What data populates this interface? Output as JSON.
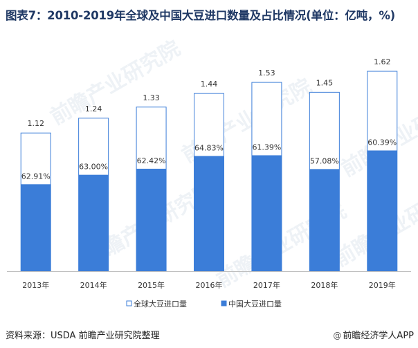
{
  "title": "图表7：2010-2019年全球及中国大豆进口数量及占比情况(单位：亿吨，%)",
  "source": "资料来源：USDA 前瞻产业研究院整理",
  "brand": "前瞻经济学人APP",
  "watermark": "前瞻产业研究院",
  "chart_data": {
    "type": "bar",
    "categories": [
      "2013年",
      "2014年",
      "2015年",
      "2016年",
      "2017年",
      "2018年",
      "2019年"
    ],
    "series": [
      {
        "name": "全球大豆进口量",
        "values": [
          1.12,
          1.24,
          1.33,
          1.44,
          1.53,
          1.45,
          1.62
        ],
        "value_labels": [
          "1.12",
          "1.24",
          "1.33",
          "1.44",
          "1.53",
          "1.45",
          "1.62"
        ],
        "color": "#ffffff",
        "stroke": "#3b7dd8"
      },
      {
        "name": "中国大豆进口量",
        "share_percent": [
          62.91,
          63.0,
          62.42,
          64.83,
          61.39,
          57.08,
          60.39
        ],
        "share_labels": [
          "62.91%",
          "63.00%",
          "62.42%",
          "64.83%",
          "61.39%",
          "57.08%",
          "60.39%"
        ],
        "color": "#3b7dd8"
      }
    ],
    "stacked": true,
    "ylim": [
      0,
      1.85
    ],
    "axis_visible": false,
    "grid": false,
    "legend_position": "bottom"
  }
}
